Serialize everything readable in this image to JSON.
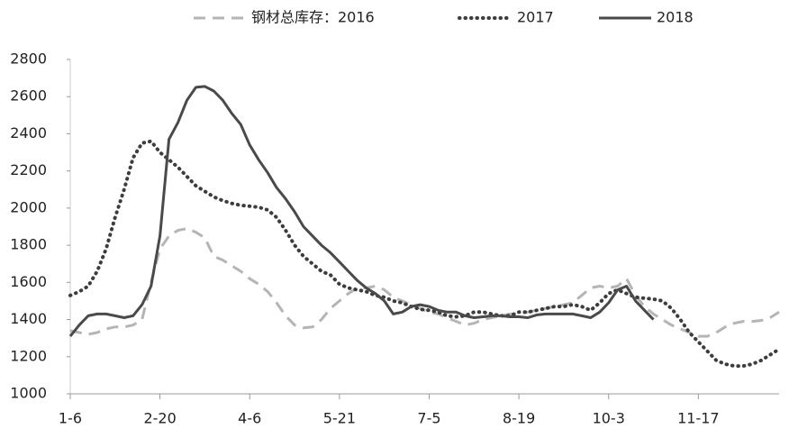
{
  "chart_data": {
    "type": "line",
    "categories": [
      "1-6",
      null,
      null,
      null,
      null,
      null,
      null,
      null,
      null,
      null,
      "2-20",
      null,
      null,
      null,
      null,
      null,
      null,
      null,
      null,
      null,
      "4-6",
      null,
      null,
      null,
      null,
      null,
      null,
      null,
      null,
      null,
      "5-21",
      null,
      null,
      null,
      null,
      null,
      null,
      null,
      null,
      null,
      "7-5",
      null,
      null,
      null,
      null,
      null,
      null,
      null,
      null,
      null,
      "8-19",
      null,
      null,
      null,
      null,
      null,
      null,
      null,
      null,
      null,
      "10-3",
      null,
      null,
      null,
      null,
      null,
      null,
      null,
      null,
      null,
      "11-17",
      null,
      null,
      null,
      null,
      null,
      null,
      null,
      null,
      null
    ],
    "series": [
      {
        "name": "钢材总库存：2016",
        "color": "#b5b5b5",
        "dash": "dashed",
        "values": [
          1340,
          1330,
          1320,
          1330,
          1350,
          1360,
          1360,
          1370,
          1400,
          1600,
          1780,
          1850,
          1880,
          1890,
          1870,
          1840,
          1740,
          1720,
          1690,
          1660,
          1620,
          1590,
          1550,
          1490,
          1420,
          1370,
          1355,
          1360,
          1400,
          1460,
          1500,
          1540,
          1570,
          1570,
          1580,
          1560,
          1520,
          1500,
          1480,
          1460,
          1440,
          1430,
          1410,
          1390,
          1370,
          1380,
          1400,
          1410,
          1420,
          1430,
          1430,
          1440,
          1450,
          1460,
          1470,
          1480,
          1490,
          1530,
          1570,
          1580,
          1570,
          1580,
          1620,
          1530,
          1470,
          1430,
          1400,
          1370,
          1350,
          1330,
          1310,
          1310,
          1330,
          1360,
          1380,
          1390,
          1390,
          1395,
          1410,
          1440
        ]
      },
      {
        "name": "2017",
        "color": "#3d3d3d",
        "dash": "dotted",
        "values": [
          1530,
          1550,
          1580,
          1660,
          1780,
          1950,
          2100,
          2270,
          2350,
          2360,
          2300,
          2260,
          2220,
          2170,
          2120,
          2090,
          2060,
          2040,
          2025,
          2015,
          2010,
          2005,
          1990,
          1950,
          1880,
          1800,
          1740,
          1700,
          1660,
          1640,
          1590,
          1570,
          1560,
          1550,
          1530,
          1520,
          1500,
          1490,
          1470,
          1455,
          1450,
          1440,
          1420,
          1415,
          1420,
          1440,
          1440,
          1430,
          1420,
          1420,
          1440,
          1440,
          1450,
          1460,
          1470,
          1470,
          1480,
          1470,
          1450,
          1490,
          1540,
          1560,
          1540,
          1520,
          1515,
          1510,
          1500,
          1460,
          1400,
          1330,
          1280,
          1230,
          1180,
          1160,
          1150,
          1150,
          1160,
          1180,
          1210,
          1240
        ]
      },
      {
        "name": "2018",
        "color": "#4a4a4a",
        "dash": "solid",
        "values": [
          1310,
          1370,
          1420,
          1430,
          1430,
          1420,
          1410,
          1420,
          1480,
          1580,
          1850,
          2370,
          2460,
          2580,
          2650,
          2655,
          2630,
          2580,
          2510,
          2450,
          2340,
          2260,
          2190,
          2110,
          2050,
          1980,
          1900,
          1850,
          1800,
          1760,
          1710,
          1660,
          1610,
          1570,
          1540,
          1500,
          1430,
          1440,
          1470,
          1480,
          1470,
          1450,
          1440,
          1440,
          1420,
          1410,
          1415,
          1420,
          1420,
          1415,
          1415,
          1410,
          1425,
          1430,
          1430,
          1430,
          1430,
          1420,
          1410,
          1440,
          1490,
          1560,
          1580,
          1500,
          1450,
          1400,
          null,
          null,
          null,
          null,
          null,
          null,
          null,
          null,
          null,
          null,
          null,
          null,
          null,
          null
        ]
      }
    ],
    "ylim": [
      1000,
      2800
    ],
    "yticks": [
      1000,
      1200,
      1400,
      1600,
      1800,
      2000,
      2200,
      2400,
      2600,
      2800
    ],
    "grid": false,
    "legend": "top"
  }
}
